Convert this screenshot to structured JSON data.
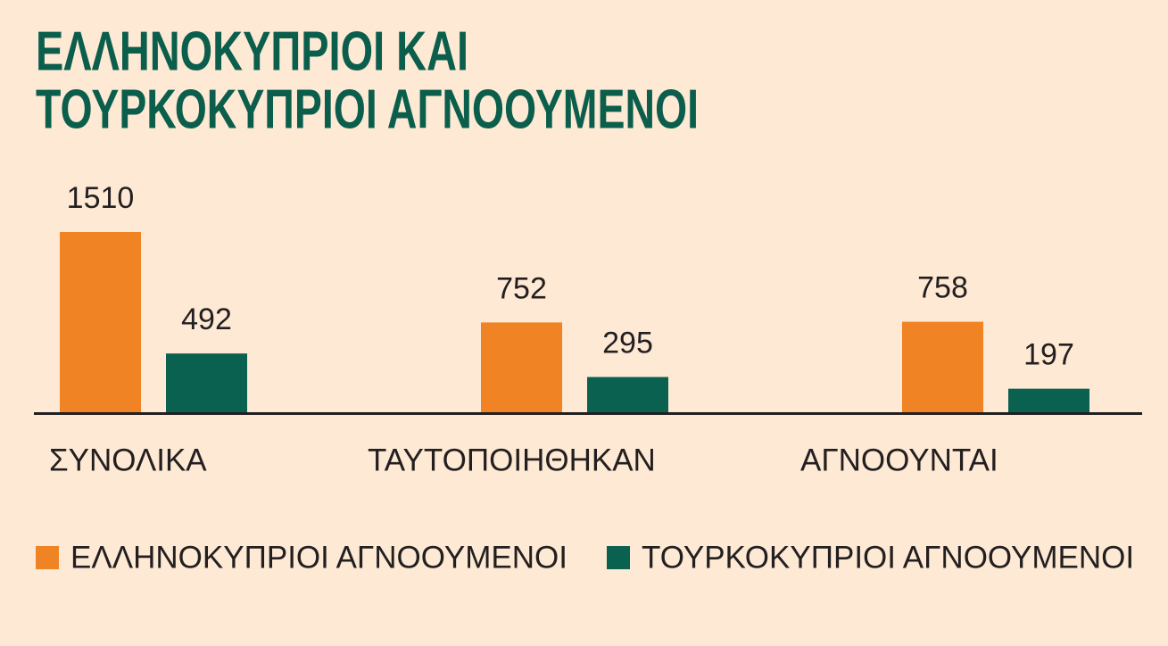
{
  "chart_data": {
    "type": "bar",
    "title": [
      "ΕΛΛΗΝΟΚΥΠΡΙΟΙ ΚΑΙ",
      "ΤΟΥΡΚΟΚΥΠΡΙΟΙ ΑΓΝΟΟΥΜΕΝΟΙ"
    ],
    "categories": [
      "ΣΥΝΟΛΙΚΑ",
      "ΤΑΥΤΟΠΟΙΗΘΗΚΑΝ",
      "ΑΓΝΟΟΥΝΤΑΙ"
    ],
    "series": [
      {
        "name": "ΕΛΛΗΝΟΚΥΠΡΙΟΙ ΑΓΝΟΟΥΜΕΝΟΙ",
        "color": "#f08323",
        "values": [
          1510,
          752,
          758
        ]
      },
      {
        "name": "ΤΟΥΡΚΟΚΥΠΡΙΟΙ ΑΓΝΟΟΥΜΕΝΟΙ",
        "color": "#0b6150",
        "values": [
          492,
          295,
          197
        ]
      }
    ]
  }
}
